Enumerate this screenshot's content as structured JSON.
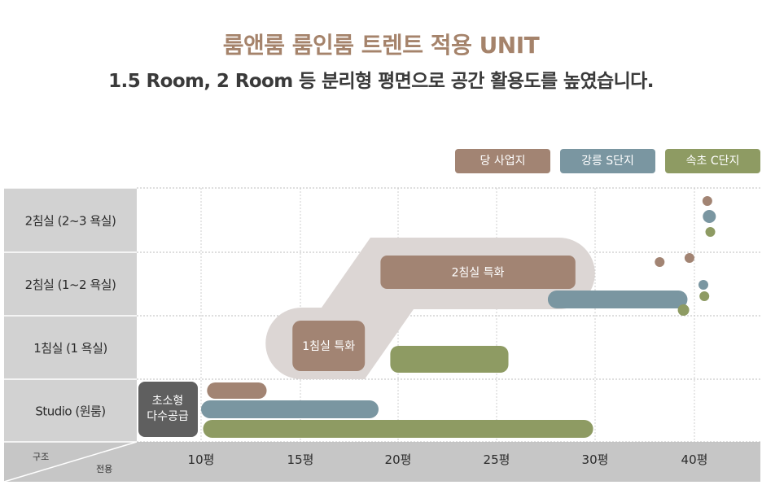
{
  "header": {
    "title": "룸앤룸 룸인룸 트렌트 적용 UNIT",
    "subtitle": "1.5 Room, 2 Room 등 분리형 평면으로 공간 활용도를 높였습니다."
  },
  "chart_data": {
    "type": "bar",
    "subtype": "range-timeline",
    "title": "룸앤룸 룸인룸 트렌트 적용 UNIT",
    "xlabel": "전용",
    "ylabel": "구조",
    "x_ticks": [
      10,
      15,
      20,
      25,
      30,
      40
    ],
    "x_tick_labels": [
      "10평",
      "15평",
      "20평",
      "25평",
      "30평",
      "40평"
    ],
    "x_scale_note": "axis breaks between 30평 and 40평",
    "categories": [
      "2침실 (2~3 욕실)",
      "2침실 (1~2 욕실)",
      "1침실 (1 욕실)",
      "Studio (원룸)"
    ],
    "legend_position": "top-right",
    "series": [
      {
        "name": "당 사업지",
        "color": "#a28473",
        "ranges": [
          {
            "category": "Studio (원룸)",
            "from": 10.3,
            "to": 13.3
          },
          {
            "category": "1침실 (1 욕실)",
            "from": 14.6,
            "to": 18.3,
            "label": "1침실 특화"
          },
          {
            "category": "2침실 (1~2 욕실)",
            "from": 19.1,
            "to": 29.0,
            "label": "2침실 특화"
          }
        ],
        "points": [
          {
            "category": "2침실 (1~2 욕실)",
            "x": 36.5
          },
          {
            "category": "2침실 (1~2 욕실)",
            "x": 39.5
          },
          {
            "category": "2침실 (2~3 욕실)",
            "x": 41.3
          }
        ]
      },
      {
        "name": "강릉 S단지",
        "color": "#7a96a1",
        "ranges": [
          {
            "category": "Studio (원룸)",
            "from": 10.0,
            "to": 19.0
          },
          {
            "category": "2침실 (1~2 욕실)",
            "from": 27.6,
            "to": 39.3
          }
        ],
        "points": [
          {
            "category": "2침실 (1~2 욕실)",
            "x": 40.9
          },
          {
            "category": "2침실 (2~3 욕실)",
            "x": 41.5
          }
        ]
      },
      {
        "name": "속초 C단지",
        "color": "#8e9b63",
        "ranges": [
          {
            "category": "Studio (원룸)",
            "from": 10.1,
            "to": 29.9
          },
          {
            "category": "1침실 (1 욕실)",
            "from": 19.6,
            "to": 25.6
          }
        ],
        "points": [
          {
            "category": "2침실 (1~2 욕실)",
            "x": 38.9
          },
          {
            "category": "2침실 (1~2 욕실)",
            "x": 41.0
          },
          {
            "category": "2침실 (2~3 욕실)",
            "x": 41.6
          }
        ]
      }
    ],
    "annotations": [
      {
        "text": "초소형\n다수공급",
        "category": "Studio (원룸)",
        "color": "#5f5f5f"
      }
    ],
    "grid": true
  }
}
